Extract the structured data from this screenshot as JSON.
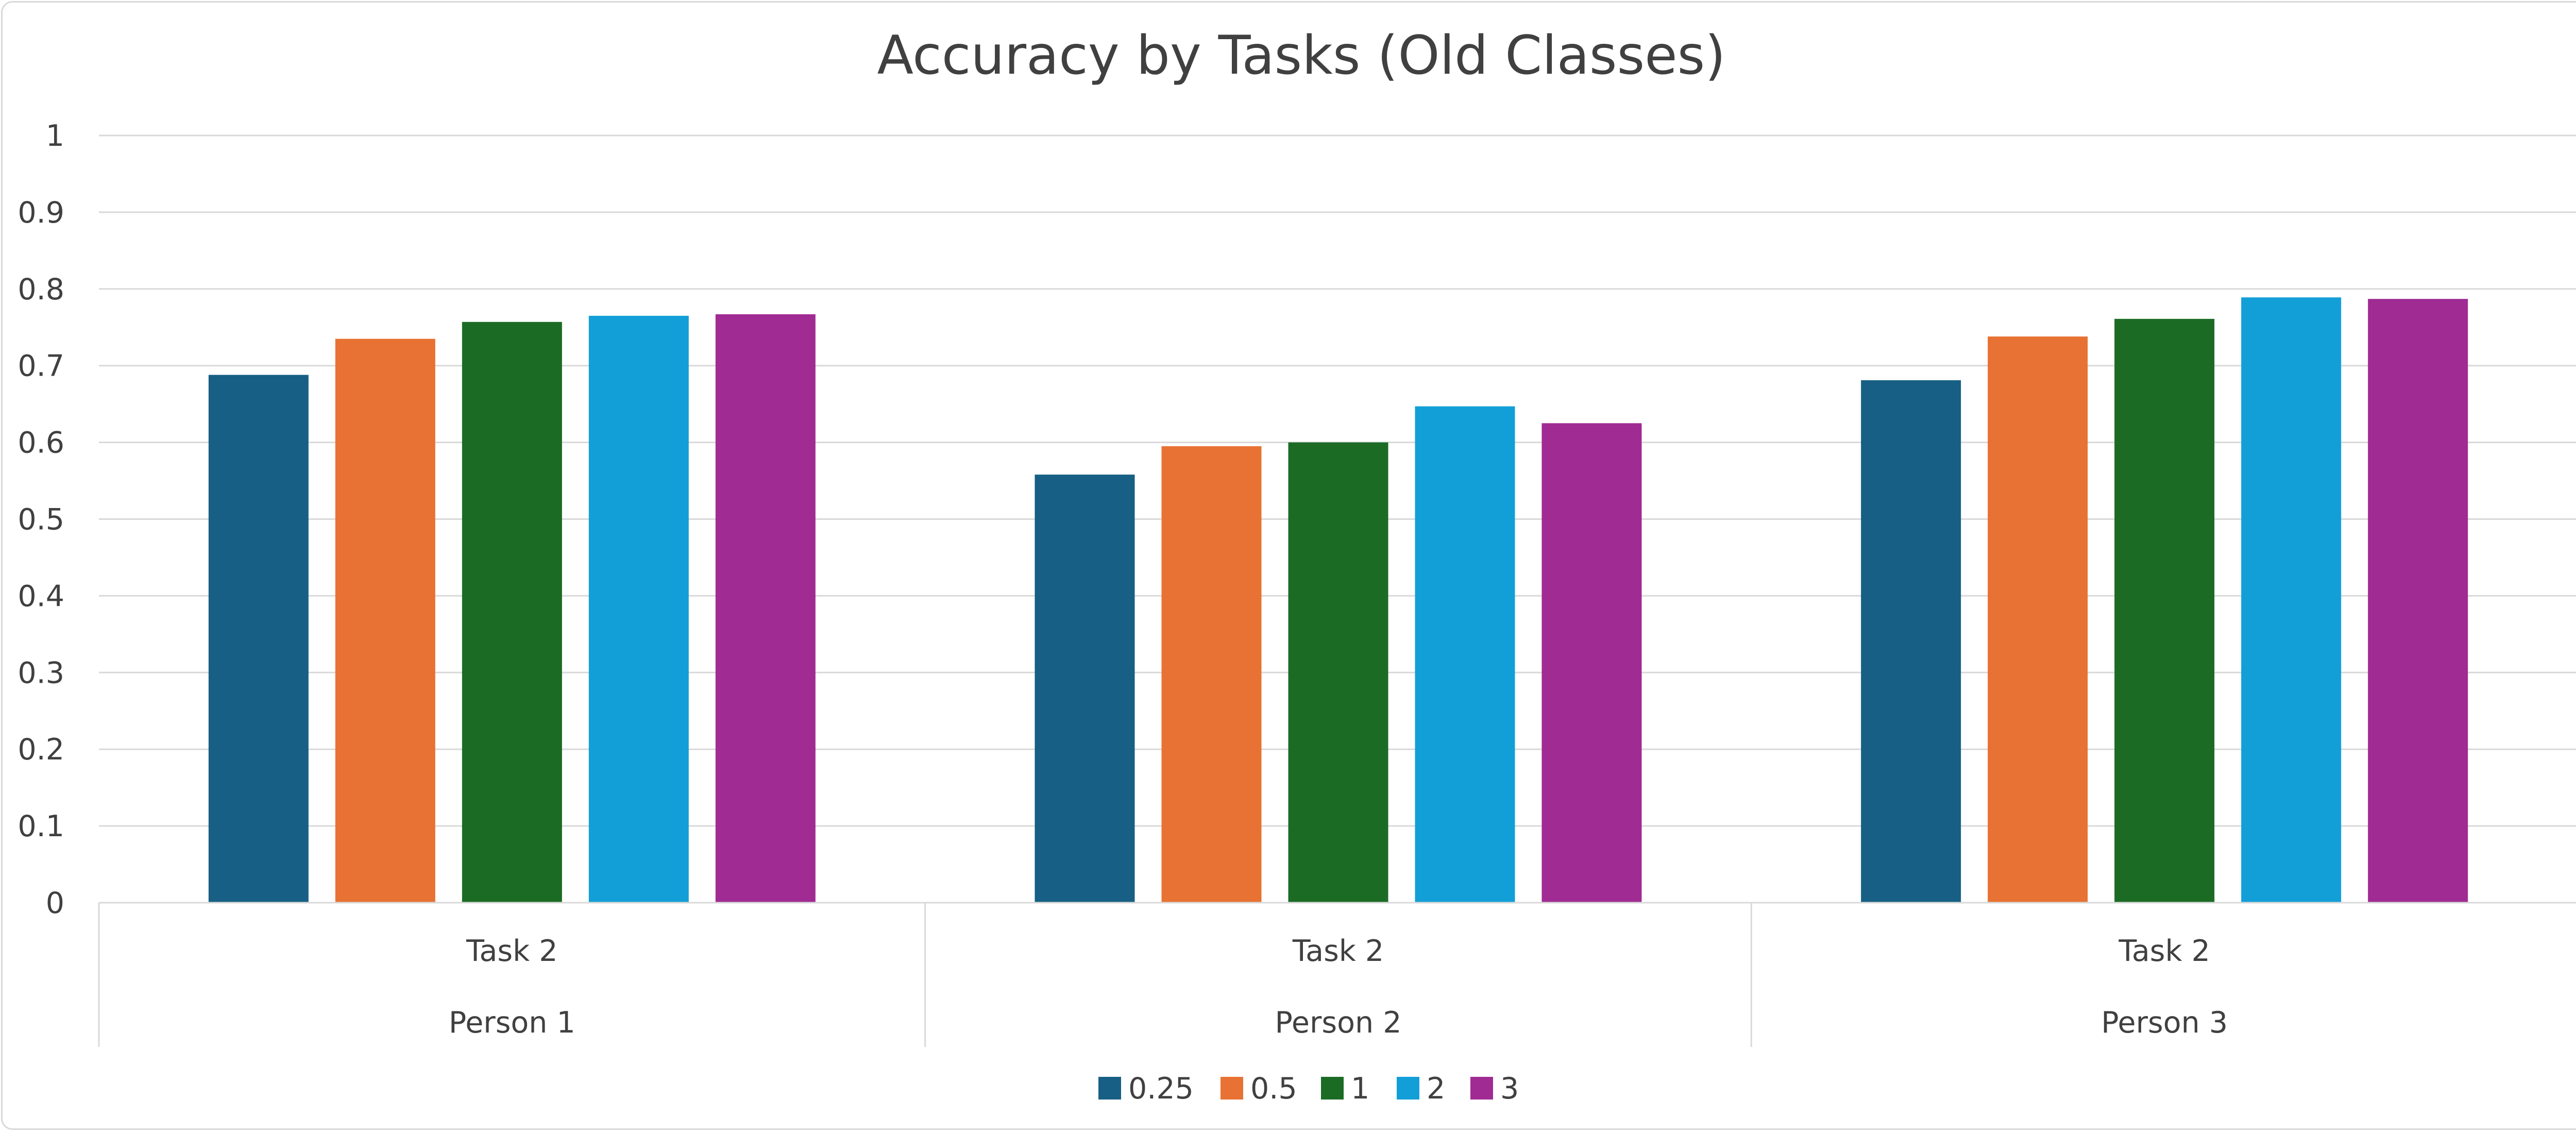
{
  "chart_data": {
    "type": "bar",
    "title": "Accuracy by Tasks (Old Classes)",
    "xlabel": "",
    "ylabel": "",
    "ylim": [
      0,
      1
    ],
    "yticks": [
      "0",
      "0.1",
      "0.2",
      "0.3",
      "0.4",
      "0.5",
      "0.6",
      "0.7",
      "0.8",
      "0.9",
      "1"
    ],
    "grid": true,
    "legend_position": "bottom",
    "categories": [
      {
        "task": "Task 2",
        "group": "Person 1"
      },
      {
        "task": "Task 2",
        "group": "Person 2"
      },
      {
        "task": "Task 2",
        "group": "Person 3"
      }
    ],
    "series": [
      {
        "name": "0.25",
        "color": "#175f84",
        "values": [
          0.688,
          0.558,
          0.681
        ]
      },
      {
        "name": "0.5",
        "color": "#e87233",
        "values": [
          0.735,
          0.595,
          0.738
        ]
      },
      {
        "name": "1",
        "color": "#1b6b25",
        "values": [
          0.757,
          0.6,
          0.761
        ]
      },
      {
        "name": "2",
        "color": "#129fd8",
        "values": [
          0.765,
          0.647,
          0.789
        ]
      },
      {
        "name": "3",
        "color": "#a02b93",
        "values": [
          0.767,
          0.625,
          0.787
        ]
      }
    ]
  }
}
